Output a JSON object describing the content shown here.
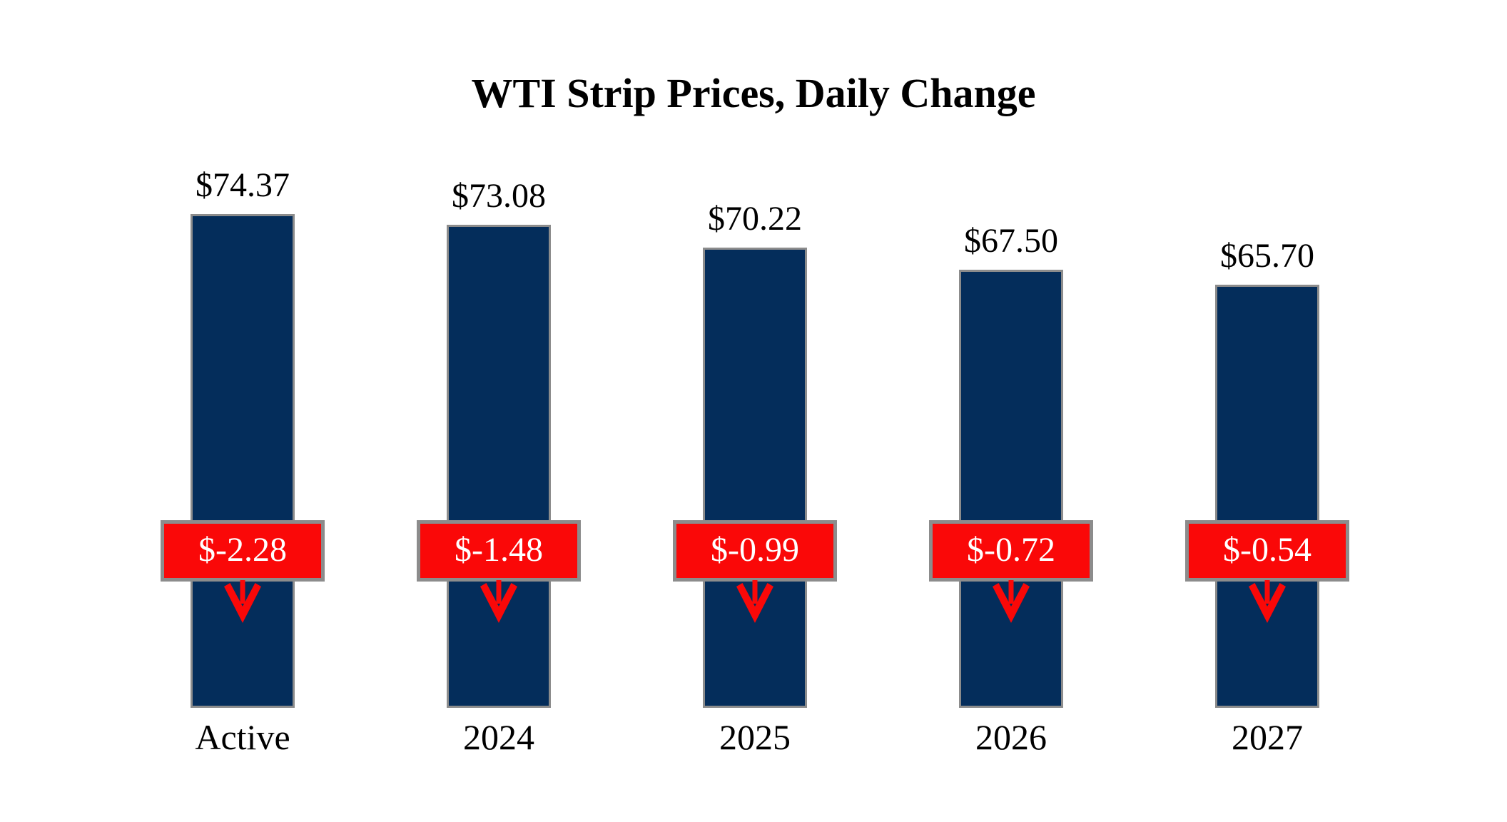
{
  "title": "WTI Strip Prices, Daily Change",
  "chart_data": {
    "type": "bar",
    "title": "WTI Strip Prices, Daily Change",
    "categories": [
      "Active",
      "2024",
      "2025",
      "2026",
      "2027"
    ],
    "series": [
      {
        "name": "Strip Price",
        "values": [
          74.37,
          73.08,
          70.22,
          67.5,
          65.7
        ],
        "labels": [
          "$74.37",
          "$73.08",
          "$70.22",
          "$67.50",
          "$65.70"
        ]
      },
      {
        "name": "Daily Change",
        "values": [
          -2.28,
          -1.48,
          -0.99,
          -0.72,
          -0.54
        ],
        "labels": [
          "$-2.28",
          "$-1.48",
          "$-0.99",
          "$-0.72",
          "$-0.54"
        ]
      }
    ],
    "legend": "none",
    "grid": false,
    "axes_visible": false,
    "colors": {
      "bar_fill": "#042d5b",
      "bar_border": "#8c8c8c",
      "change_box_fill": "#fa0808",
      "change_box_border": "#8c8c8c",
      "change_text": "#ffffff",
      "label_text": "#000000",
      "arrow": "#fa0808",
      "background": "#ffffff"
    }
  }
}
